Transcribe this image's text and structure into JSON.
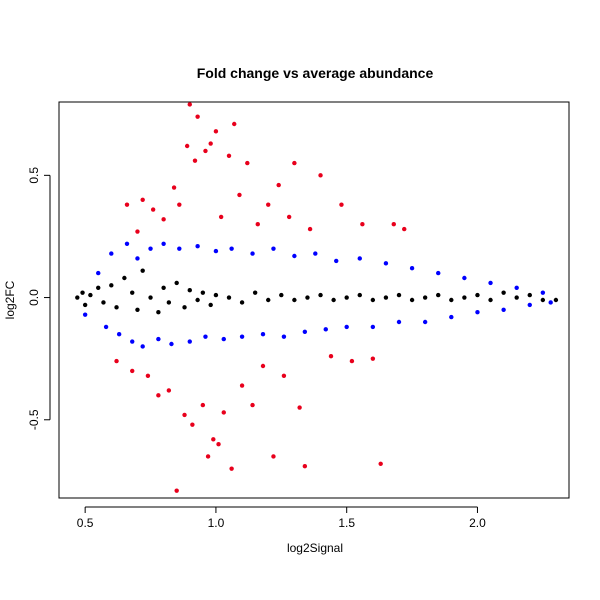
{
  "chart_data": {
    "type": "scatter",
    "title": "Fold change vs average abundance",
    "xlabel": "log2Signal",
    "ylabel": "log2FC",
    "xlim": [
      0.4,
      2.35
    ],
    "ylim": [
      -0.82,
      0.8
    ],
    "x_ticks": [
      0.5,
      1.0,
      1.5,
      2.0
    ],
    "x_tick_labels": [
      "0.5",
      "1.0",
      "1.5",
      "2.0"
    ],
    "y_ticks": [
      -0.5,
      0.0,
      0.5
    ],
    "y_tick_labels": [
      "-0.5",
      "0.0",
      "0.5"
    ],
    "grid": false,
    "legend": "none",
    "colors": {
      "black": "#000000",
      "blue": "#0000ff",
      "red": "#e8001c"
    },
    "series": [
      {
        "color": "black",
        "points": [
          [
            0.47,
            0.0
          ],
          [
            0.49,
            0.02
          ],
          [
            0.5,
            -0.03
          ],
          [
            0.52,
            0.01
          ],
          [
            0.55,
            0.04
          ],
          [
            0.57,
            -0.02
          ],
          [
            0.6,
            0.05
          ],
          [
            0.62,
            -0.04
          ],
          [
            0.65,
            0.08
          ],
          [
            0.68,
            0.02
          ],
          [
            0.7,
            -0.05
          ],
          [
            0.72,
            0.11
          ],
          [
            0.75,
            0.0
          ],
          [
            0.78,
            -0.06
          ],
          [
            0.8,
            0.04
          ],
          [
            0.82,
            -0.02
          ],
          [
            0.85,
            0.06
          ],
          [
            0.88,
            -0.04
          ],
          [
            0.9,
            0.03
          ],
          [
            0.93,
            -0.01
          ],
          [
            0.95,
            0.02
          ],
          [
            0.98,
            -0.03
          ],
          [
            1.0,
            0.01
          ],
          [
            1.05,
            0.0
          ],
          [
            1.1,
            -0.02
          ],
          [
            1.15,
            0.02
          ],
          [
            1.2,
            -0.01
          ],
          [
            1.25,
            0.01
          ],
          [
            1.3,
            -0.01
          ],
          [
            1.35,
            0.0
          ],
          [
            1.4,
            0.01
          ],
          [
            1.45,
            -0.01
          ],
          [
            1.5,
            0.0
          ],
          [
            1.55,
            0.01
          ],
          [
            1.6,
            -0.01
          ],
          [
            1.65,
            0.0
          ],
          [
            1.7,
            0.01
          ],
          [
            1.75,
            -0.01
          ],
          [
            1.8,
            0.0
          ],
          [
            1.85,
            0.01
          ],
          [
            1.9,
            -0.01
          ],
          [
            1.95,
            0.0
          ],
          [
            2.0,
            0.01
          ],
          [
            2.05,
            -0.01
          ],
          [
            2.1,
            0.02
          ],
          [
            2.15,
            0.0
          ],
          [
            2.2,
            0.01
          ],
          [
            2.25,
            -0.01
          ],
          [
            2.3,
            -0.01
          ]
        ]
      },
      {
        "color": "blue",
        "points": [
          [
            0.5,
            -0.07
          ],
          [
            0.55,
            0.1
          ],
          [
            0.58,
            -0.12
          ],
          [
            0.6,
            0.18
          ],
          [
            0.63,
            -0.15
          ],
          [
            0.66,
            0.22
          ],
          [
            0.68,
            -0.18
          ],
          [
            0.7,
            0.16
          ],
          [
            0.72,
            -0.2
          ],
          [
            0.75,
            0.2
          ],
          [
            0.78,
            -0.17
          ],
          [
            0.8,
            0.22
          ],
          [
            0.83,
            -0.19
          ],
          [
            0.86,
            0.2
          ],
          [
            0.9,
            -0.18
          ],
          [
            0.93,
            0.21
          ],
          [
            0.96,
            -0.16
          ],
          [
            1.0,
            0.19
          ],
          [
            1.03,
            -0.17
          ],
          [
            1.06,
            0.2
          ],
          [
            1.1,
            -0.16
          ],
          [
            1.14,
            0.18
          ],
          [
            1.18,
            -0.15
          ],
          [
            1.22,
            0.2
          ],
          [
            1.26,
            -0.16
          ],
          [
            1.3,
            0.17
          ],
          [
            1.34,
            -0.14
          ],
          [
            1.38,
            0.18
          ],
          [
            1.42,
            -0.13
          ],
          [
            1.46,
            0.15
          ],
          [
            1.5,
            -0.12
          ],
          [
            1.55,
            0.16
          ],
          [
            1.6,
            -0.12
          ],
          [
            1.65,
            0.14
          ],
          [
            1.7,
            -0.1
          ],
          [
            1.75,
            0.12
          ],
          [
            1.8,
            -0.1
          ],
          [
            1.85,
            0.1
          ],
          [
            1.9,
            -0.08
          ],
          [
            1.95,
            0.08
          ],
          [
            2.0,
            -0.06
          ],
          [
            2.05,
            0.06
          ],
          [
            2.1,
            -0.05
          ],
          [
            2.15,
            0.04
          ],
          [
            2.2,
            -0.03
          ],
          [
            2.25,
            0.02
          ],
          [
            2.28,
            -0.02
          ]
        ]
      },
      {
        "color": "red",
        "points": [
          [
            0.62,
            -0.26
          ],
          [
            0.66,
            0.38
          ],
          [
            0.68,
            -0.3
          ],
          [
            0.7,
            0.27
          ],
          [
            0.72,
            0.4
          ],
          [
            0.74,
            -0.32
          ],
          [
            0.76,
            0.36
          ],
          [
            0.78,
            -0.4
          ],
          [
            0.8,
            0.32
          ],
          [
            0.82,
            -0.38
          ],
          [
            0.84,
            0.45
          ],
          [
            0.85,
            -0.79
          ],
          [
            0.86,
            0.38
          ],
          [
            0.88,
            -0.48
          ],
          [
            0.89,
            0.62
          ],
          [
            0.9,
            0.79
          ],
          [
            0.91,
            -0.52
          ],
          [
            0.92,
            0.56
          ],
          [
            0.93,
            0.74
          ],
          [
            0.95,
            -0.44
          ],
          [
            0.96,
            0.6
          ],
          [
            0.97,
            -0.65
          ],
          [
            0.98,
            0.63
          ],
          [
            0.99,
            -0.58
          ],
          [
            1.0,
            0.68
          ],
          [
            1.01,
            -0.6
          ],
          [
            1.02,
            0.33
          ],
          [
            1.03,
            -0.47
          ],
          [
            1.05,
            0.58
          ],
          [
            1.06,
            -0.7
          ],
          [
            1.07,
            0.71
          ],
          [
            1.09,
            0.42
          ],
          [
            1.1,
            -0.36
          ],
          [
            1.12,
            0.55
          ],
          [
            1.14,
            -0.44
          ],
          [
            1.16,
            0.3
          ],
          [
            1.18,
            -0.28
          ],
          [
            1.2,
            0.38
          ],
          [
            1.22,
            -0.65
          ],
          [
            1.24,
            0.46
          ],
          [
            1.26,
            -0.32
          ],
          [
            1.28,
            0.33
          ],
          [
            1.3,
            0.55
          ],
          [
            1.32,
            -0.45
          ],
          [
            1.34,
            -0.69
          ],
          [
            1.36,
            0.28
          ],
          [
            1.4,
            0.5
          ],
          [
            1.44,
            -0.24
          ],
          [
            1.48,
            0.38
          ],
          [
            1.52,
            -0.26
          ],
          [
            1.56,
            0.3
          ],
          [
            1.6,
            -0.25
          ],
          [
            1.63,
            -0.68
          ],
          [
            1.68,
            0.3
          ],
          [
            1.72,
            0.28
          ]
        ]
      }
    ]
  }
}
